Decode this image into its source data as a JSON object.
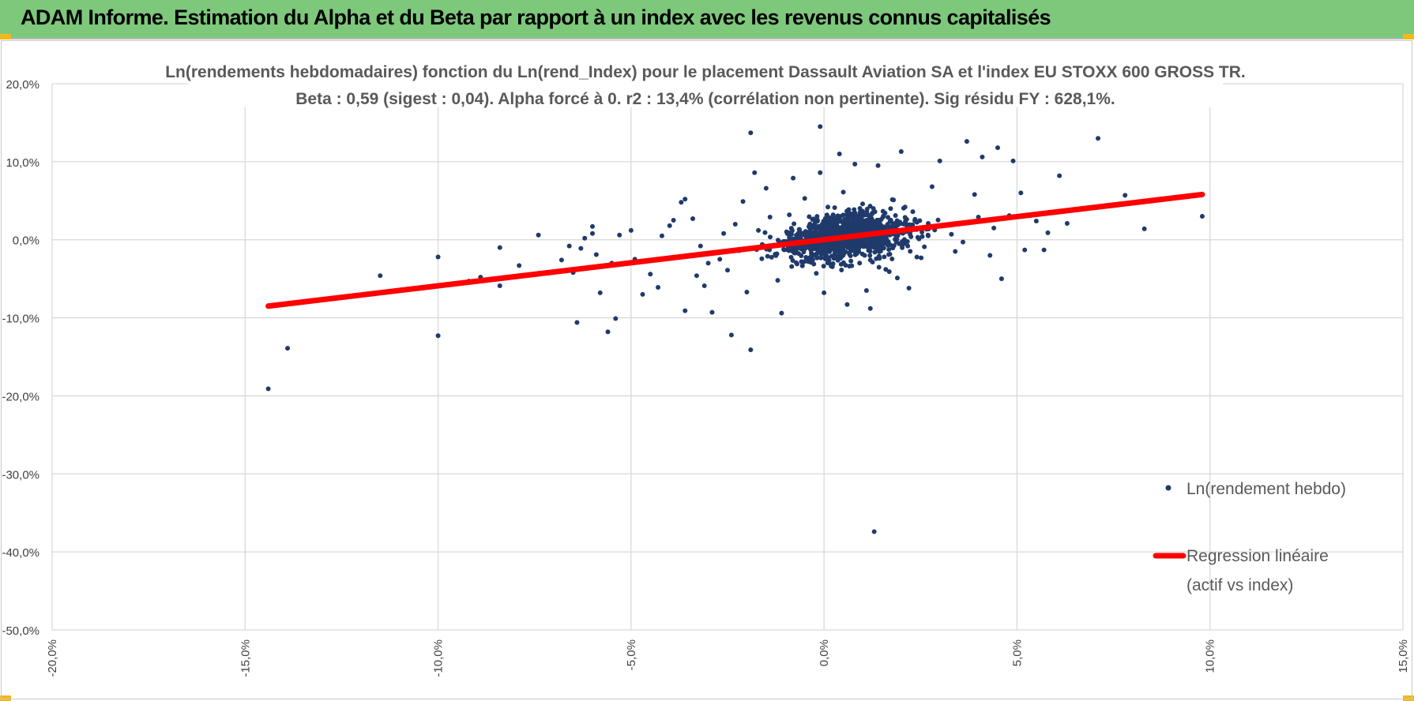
{
  "header": {
    "title": "ADAM Informe. Estimation du Alpha et du Beta par rapport à un index avec les revenus connus capitalisés",
    "background": "#7ec87c"
  },
  "chart_data": {
    "type": "scatter",
    "title": "Ln(rendements hebdomadaires) fonction du Ln(rend_Index) pour le placement Dassault Aviation SA et l'index EU STOXX 600 GROSS TR.",
    "subtitle": "Beta : 0,59 (sigest : 0,04).  Alpha forcé à 0. r2 : 13,4% (corrélation non pertinente). Sig résidu FY : 628,1%.",
    "xlabel": "",
    "ylabel": "",
    "xlim": [
      -20,
      15
    ],
    "ylim": [
      -50,
      20
    ],
    "x_ticks": [
      "-20,0%",
      "-15,0%",
      "-10,0%",
      "-5,0%",
      "0,0%",
      "5,0%",
      "10,0%",
      "15,0%"
    ],
    "y_ticks": [
      "20,0%",
      "10,0%",
      "0,0%",
      "-10,0%",
      "-20,0%",
      "-30,0%",
      "-40,0%",
      "-50,0%"
    ],
    "grid": true,
    "legend_position": "right",
    "series": [
      {
        "name": "Ln(rendement hebdo)",
        "kind": "scatter",
        "color": "#1f3a6b",
        "points": [
          [
            -14.4,
            -19.1
          ],
          [
            -13.9,
            -13.9
          ],
          [
            -11.5,
            -4.6
          ],
          [
            -10.0,
            -2.2
          ],
          [
            -10.0,
            -12.3
          ],
          [
            -9.2,
            -5.3
          ],
          [
            -8.4,
            -1.0
          ],
          [
            -8.4,
            -5.9
          ],
          [
            -7.4,
            0.6
          ],
          [
            -7.4,
            -4.3
          ],
          [
            -6.6,
            -0.8
          ],
          [
            -6.5,
            -4.2
          ],
          [
            -6.4,
            -10.6
          ],
          [
            -6.3,
            -1.1
          ],
          [
            -6.0,
            1.7
          ],
          [
            -6.0,
            0.8
          ],
          [
            -5.8,
            -6.8
          ],
          [
            -5.6,
            -11.8
          ],
          [
            -5.5,
            -3.0
          ],
          [
            -5.4,
            -10.1
          ],
          [
            -5.3,
            0.6
          ],
          [
            -5.0,
            1.2
          ],
          [
            -4.7,
            -7.0
          ],
          [
            -4.5,
            -4.4
          ],
          [
            -4.3,
            -6.1
          ],
          [
            -4.2,
            0.5
          ],
          [
            -3.9,
            2.5
          ],
          [
            -3.7,
            4.8
          ],
          [
            -3.6,
            5.2
          ],
          [
            -3.6,
            -9.1
          ],
          [
            -3.4,
            2.7
          ],
          [
            -3.2,
            -0.8
          ],
          [
            -3.1,
            -5.9
          ],
          [
            -2.9,
            -9.3
          ],
          [
            -2.6,
            0.8
          ],
          [
            -2.4,
            -12.2
          ],
          [
            -2.3,
            2.0
          ],
          [
            -2.1,
            4.9
          ],
          [
            -2.0,
            -6.7
          ],
          [
            -1.9,
            13.7
          ],
          [
            -1.9,
            -14.1
          ],
          [
            -1.8,
            8.6
          ],
          [
            -1.7,
            1.2
          ],
          [
            -1.5,
            6.6
          ],
          [
            -1.3,
            -0.7
          ],
          [
            -1.2,
            -5.2
          ],
          [
            -1.1,
            -9.4
          ],
          [
            -0.9,
            3.2
          ],
          [
            -0.8,
            7.9
          ],
          [
            -0.7,
            -3.1
          ],
          [
            -0.5,
            5.3
          ],
          [
            -0.4,
            -2.8
          ],
          [
            -0.3,
            2.6
          ],
          [
            -0.1,
            14.5
          ],
          [
            -0.1,
            8.6
          ],
          [
            0.0,
            -6.8
          ],
          [
            0.1,
            4.2
          ],
          [
            0.2,
            1.4
          ],
          [
            0.3,
            -2.3
          ],
          [
            0.4,
            11.0
          ],
          [
            0.5,
            6.1
          ],
          [
            0.6,
            -8.3
          ],
          [
            0.7,
            2.1
          ],
          [
            0.8,
            9.7
          ],
          [
            0.9,
            -1.5
          ],
          [
            1.0,
            4.6
          ],
          [
            1.1,
            -6.5
          ],
          [
            1.2,
            -8.8
          ],
          [
            1.3,
            -37.4
          ],
          [
            1.4,
            9.5
          ],
          [
            1.5,
            0.9
          ],
          [
            1.6,
            -3.8
          ],
          [
            1.8,
            5.1
          ],
          [
            2.0,
            11.3
          ],
          [
            2.2,
            -6.2
          ],
          [
            2.3,
            3.6
          ],
          [
            2.6,
            -0.9
          ],
          [
            2.8,
            6.8
          ],
          [
            3.0,
            10.1
          ],
          [
            3.2,
            1.9
          ],
          [
            3.4,
            -1.5
          ],
          [
            3.7,
            12.6
          ],
          [
            3.9,
            5.8
          ],
          [
            4.1,
            10.6
          ],
          [
            4.3,
            -2.0
          ],
          [
            4.5,
            11.8
          ],
          [
            4.6,
            -5.0
          ],
          [
            4.9,
            10.1
          ],
          [
            5.1,
            6.0
          ],
          [
            5.2,
            -1.3
          ],
          [
            5.5,
            2.4
          ],
          [
            5.7,
            -1.3
          ],
          [
            6.1,
            8.2
          ],
          [
            6.3,
            2.1
          ],
          [
            7.1,
            13.0
          ],
          [
            7.8,
            5.7
          ],
          [
            8.3,
            1.4
          ],
          [
            9.8,
            3.0
          ],
          [
            -7.9,
            -3.3
          ],
          [
            -6.8,
            -2.6
          ],
          [
            -4.9,
            -2.5
          ],
          [
            -3.0,
            -3.0
          ],
          [
            -2.7,
            -2.5
          ],
          [
            -2.2,
            -1.4
          ],
          [
            -1.6,
            -0.6
          ],
          [
            -1.0,
            -0.2
          ],
          [
            -0.6,
            0.8
          ],
          [
            0.3,
            0.5
          ],
          [
            0.9,
            1.6
          ],
          [
            1.7,
            0.6
          ],
          [
            2.4,
            1.3
          ],
          [
            2.7,
            2.1
          ],
          [
            3.3,
            0.7
          ],
          [
            4.0,
            2.9
          ],
          [
            4.8,
            3.1
          ],
          [
            -8.9,
            -4.8
          ],
          [
            -5.9,
            -1.9
          ],
          [
            -4.0,
            1.8
          ],
          [
            -3.3,
            -4.6
          ],
          [
            -2.5,
            -3.9
          ],
          [
            -1.4,
            2.9
          ],
          [
            -0.2,
            -4.3
          ],
          [
            0.6,
            3.7
          ],
          [
            1.2,
            -2.6
          ],
          [
            2.1,
            4.2
          ],
          [
            3.6,
            -0.3
          ],
          [
            4.4,
            1.5
          ],
          [
            5.8,
            0.9
          ],
          [
            -6.2,
            0.2
          ],
          [
            1.9,
            -4.9
          ]
        ]
      },
      {
        "name": "Regression linéaire",
        "legend_label_lines": [
          "Regression linéaire",
          "(actif vs index)"
        ],
        "kind": "line",
        "color": "#ff0000",
        "points": [
          [
            -14.4,
            -8.5
          ],
          [
            9.8,
            5.8
          ]
        ]
      }
    ]
  }
}
